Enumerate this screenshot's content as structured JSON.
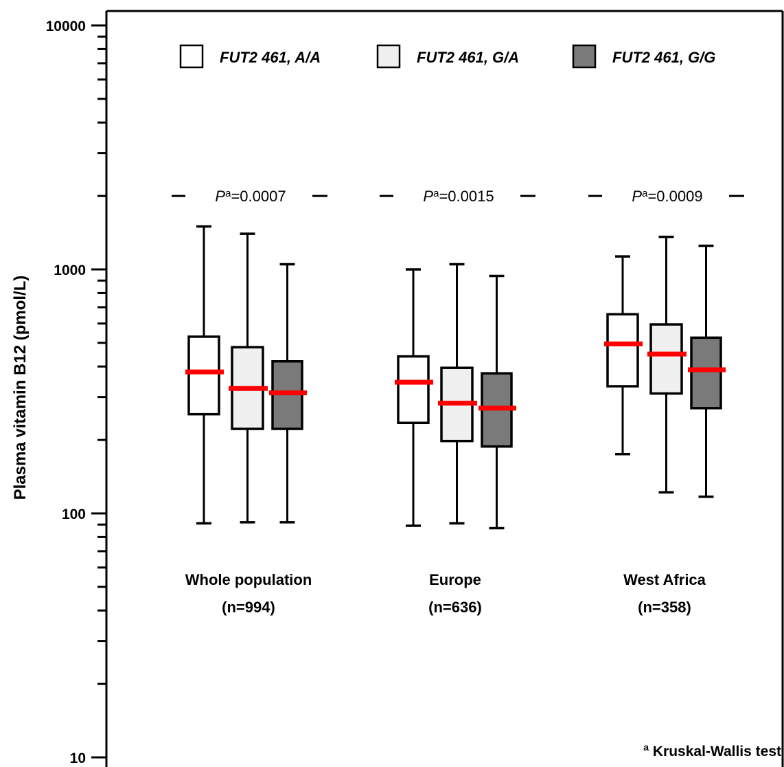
{
  "chart_data": {
    "type": "boxplot",
    "ylabel": "Plasma vitamin B12 (pmol/L)",
    "yscale": "log",
    "ylim": [
      10,
      10000
    ],
    "yticks": [
      {
        "value": 10,
        "label": "10"
      },
      {
        "value": 100,
        "label": "100"
      },
      {
        "value": 1000,
        "label": "1000"
      },
      {
        "value": 10000,
        "label": "10000"
      }
    ],
    "legend": {
      "placement": "top",
      "entries": [
        {
          "name": "FUT2 461, A/A",
          "color": "#ffffff"
        },
        {
          "name": "FUT2 461, G/A",
          "color": "#f0f0f0"
        },
        {
          "name": "FUT2 461, G/G",
          "color": "#7a7a7a"
        }
      ]
    },
    "median_color": "#ff0000",
    "groups": [
      {
        "label_line1": "Whole population",
        "label_line2": "(n=994)",
        "p_symbol": "P",
        "p_sup": "a",
        "p_value": "=0.0007",
        "boxes": [
          {
            "genotype": "FUT2 461, A/A",
            "min": 91,
            "q1": 255,
            "median": 380,
            "q3": 530,
            "max": 1500
          },
          {
            "genotype": "FUT2 461, G/A",
            "min": 92,
            "q1": 222,
            "median": 325,
            "q3": 480,
            "max": 1400
          },
          {
            "genotype": "FUT2 461, G/G",
            "min": 92,
            "q1": 222,
            "median": 312,
            "q3": 420,
            "max": 1050
          }
        ]
      },
      {
        "label_line1": "Europe",
        "label_line2": "(n=636)",
        "p_symbol": "P",
        "p_sup": "a",
        "p_value": "=0.0015",
        "boxes": [
          {
            "genotype": "FUT2 461, A/A",
            "min": 89,
            "q1": 235,
            "median": 345,
            "q3": 440,
            "max": 1000
          },
          {
            "genotype": "FUT2 461, G/A",
            "min": 91,
            "q1": 198,
            "median": 283,
            "q3": 395,
            "max": 1050
          },
          {
            "genotype": "FUT2 461, G/G",
            "min": 87,
            "q1": 188,
            "median": 270,
            "q3": 375,
            "max": 940
          }
        ]
      },
      {
        "label_line1": "West Africa",
        "label_line2": "(n=358)",
        "p_symbol": "P",
        "p_sup": "a",
        "p_value": "=0.0009",
        "boxes": [
          {
            "genotype": "FUT2 461, A/A",
            "min": 175,
            "q1": 332,
            "median": 495,
            "q3": 655,
            "max": 1130
          },
          {
            "genotype": "FUT2 461, G/A",
            "min": 122,
            "q1": 310,
            "median": 450,
            "q3": 595,
            "max": 1360
          },
          {
            "genotype": "FUT2 461, G/G",
            "min": 117,
            "q1": 270,
            "median": 388,
            "q3": 525,
            "max": 1250
          }
        ]
      }
    ],
    "footnote_sup": "a",
    "footnote_text": " Kruskal-Wallis test"
  }
}
